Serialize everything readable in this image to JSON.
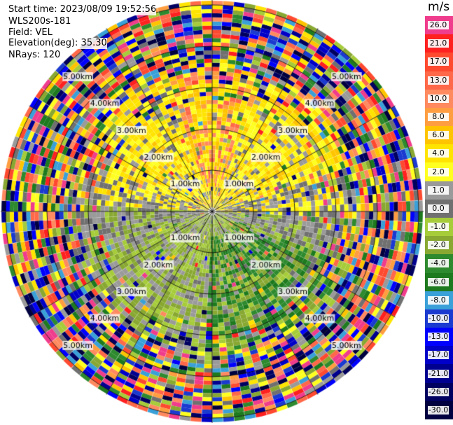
{
  "info": {
    "start_time": "Start time: 2023/08/09 19:52:56",
    "instrument": "WLS200s-181",
    "field": "Field: VEL",
    "elevation": "Elevation(deg): 35.30",
    "nrays": "NRays: 120"
  },
  "colorbar": {
    "unit": "m/s",
    "levels": [
      {
        "label": "26.0",
        "color": "#f03c8c"
      },
      {
        "label": "21.0",
        "color": "#ff2020"
      },
      {
        "label": "17.0",
        "color": "#ff4a30"
      },
      {
        "label": "13.0",
        "color": "#ff6848"
      },
      {
        "label": "10.0",
        "color": "#ff8a60"
      },
      {
        "label": "8.0",
        "color": "#ff9e40"
      },
      {
        "label": "6.0",
        "color": "#ffc400"
      },
      {
        "label": "4.0",
        "color": "#ffe400"
      },
      {
        "label": "2.0",
        "color": "#ffff20"
      },
      {
        "label": "1.0",
        "color": "#9a9a9a"
      },
      {
        "label": "0.0",
        "color": "#707070"
      },
      {
        "label": "-1.0",
        "color": "#a6cc3a"
      },
      {
        "label": "-2.0",
        "color": "#88a832"
      },
      {
        "label": "-4.0",
        "color": "#2e8a2e"
      },
      {
        "label": "-6.0",
        "color": "#1e7a1e"
      },
      {
        "label": "-8.0",
        "color": "#3aa0d8"
      },
      {
        "label": "-10.0",
        "color": "#1a3ad0"
      },
      {
        "label": "-13.0",
        "color": "#0000ff"
      },
      {
        "label": "-17.0",
        "color": "#0000c8"
      },
      {
        "label": "-21.0",
        "color": "#000090"
      },
      {
        "label": "-26.0",
        "color": "#000060"
      },
      {
        "label": "-30.0",
        "color": "#000040"
      }
    ]
  },
  "chart_data": {
    "type": "heatmap",
    "projection": "polar-ppi",
    "field": "VEL",
    "nrays": 120,
    "range_rings": [
      "1.00km",
      "2.00km",
      "3.00km",
      "4.00km",
      "5.00km"
    ],
    "spokes": 12,
    "clim": [
      -30.0,
      26.0
    ],
    "pattern": [
      {
        "region": "north, 0-3 km",
        "dominant_velocity": "2.0 to 17.0 m/s",
        "colors": "yellow/orange/red"
      },
      {
        "region": "south, 0-3 km",
        "dominant_velocity": "-1.0 to -6.0 m/s",
        "colors": "green"
      },
      {
        "region": "east-west axis near center",
        "dominant_velocity": "0.0 to 1.0 m/s",
        "colors": "gray"
      },
      {
        "region": "beyond ~3.5 km",
        "dominant_velocity": "noise (all values)",
        "colors": "mixed"
      }
    ]
  }
}
